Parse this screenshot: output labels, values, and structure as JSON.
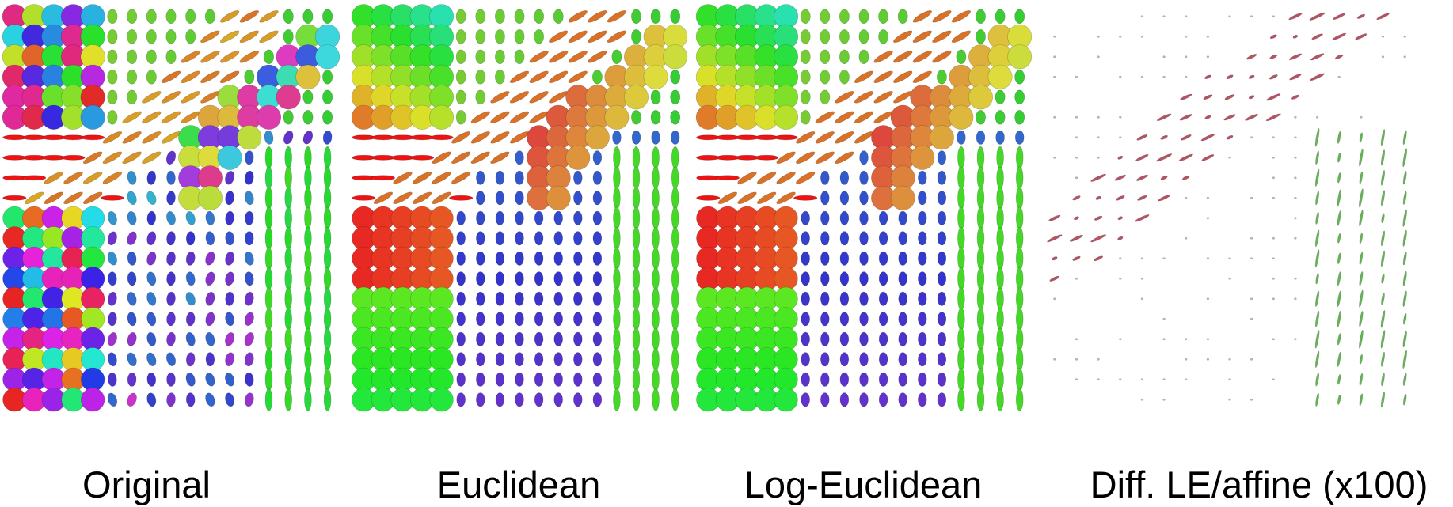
{
  "panels": [
    {
      "caption": "Original"
    },
    {
      "caption": "Euclidean"
    },
    {
      "caption": "Log-Euclidean"
    },
    {
      "caption": "Diff. LE/affine (x100)"
    }
  ]
}
